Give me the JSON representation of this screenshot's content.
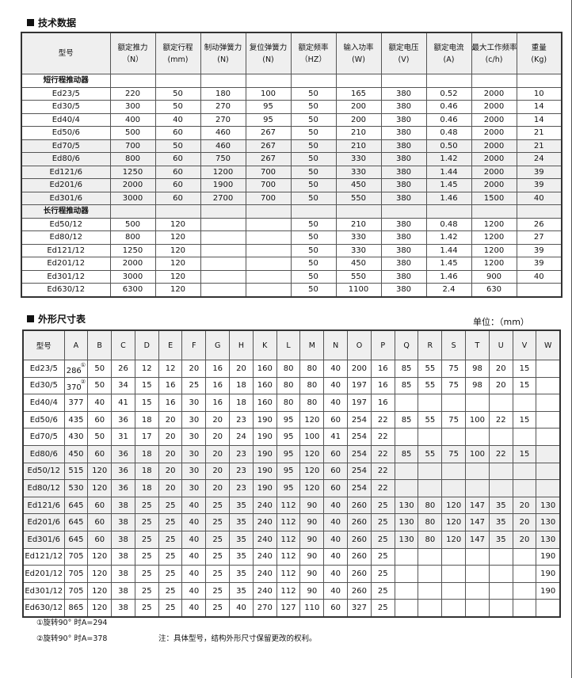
{
  "spec": {
    "title": "技术数据",
    "headers": [
      {
        "name": "型号",
        "unit": ""
      },
      {
        "name": "额定推力",
        "unit": "（N）"
      },
      {
        "name": "额定行程",
        "unit": "(mm)"
      },
      {
        "name": "制动弹簧力",
        "unit": "(N)"
      },
      {
        "name": "复位弹簧力",
        "unit": "(N)"
      },
      {
        "name": "额定频率",
        "unit": "（HZ）"
      },
      {
        "name": "输入功率",
        "unit": "(W)"
      },
      {
        "name": "额定电压",
        "unit": "(V)"
      },
      {
        "name": "额定电流",
        "unit": "(A)"
      },
      {
        "name": "最大工作频率",
        "unit": "(c/h)"
      },
      {
        "name": "重量",
        "unit": "(Kg)"
      }
    ],
    "groups": [
      {
        "label": "短行程推动器",
        "rows": [
          [
            "Ed23/5",
            "220",
            "50",
            "180",
            "100",
            "50",
            "165",
            "380",
            "0.52",
            "2000",
            "10"
          ],
          [
            "Ed30/5",
            "300",
            "50",
            "270",
            "95",
            "50",
            "200",
            "380",
            "0.46",
            "2000",
            "14"
          ],
          [
            "Ed40/4",
            "400",
            "40",
            "270",
            "95",
            "50",
            "200",
            "380",
            "0.46",
            "2000",
            "14"
          ],
          [
            "Ed50/6",
            "500",
            "60",
            "460",
            "267",
            "50",
            "210",
            "380",
            "0.48",
            "2000",
            "21"
          ],
          [
            "Ed70/5",
            "700",
            "50",
            "460",
            "267",
            "50",
            "210",
            "380",
            "0.50",
            "2000",
            "21"
          ],
          [
            "Ed80/6",
            "800",
            "60",
            "750",
            "267",
            "50",
            "330",
            "380",
            "1.42",
            "2000",
            "24"
          ],
          [
            "Ed121/6",
            "1250",
            "60",
            "1200",
            "700",
            "50",
            "330",
            "380",
            "1.44",
            "2000",
            "39"
          ],
          [
            "Ed201/6",
            "2000",
            "60",
            "1900",
            "700",
            "50",
            "450",
            "380",
            "1.45",
            "2000",
            "39"
          ],
          [
            "Ed301/6",
            "3000",
            "60",
            "2700",
            "700",
            "50",
            "550",
            "380",
            "1.46",
            "1500",
            "40"
          ]
        ]
      },
      {
        "label": "长行程推动器",
        "rows": [
          [
            "Ed50/12",
            "500",
            "120",
            "",
            "",
            "50",
            "210",
            "380",
            "0.48",
            "1200",
            "26"
          ],
          [
            "Ed80/12",
            "800",
            "120",
            "",
            "",
            "50",
            "330",
            "380",
            "1.42",
            "1200",
            "27"
          ],
          [
            "Ed121/12",
            "1250",
            "120",
            "",
            "",
            "50",
            "330",
            "380",
            "1.44",
            "1200",
            "39"
          ],
          [
            "Ed201/12",
            "2000",
            "120",
            "",
            "",
            "50",
            "450",
            "380",
            "1.45",
            "1200",
            "39"
          ],
          [
            "Ed301/12",
            "3000",
            "120",
            "",
            "",
            "50",
            "550",
            "380",
            "1.46",
            "900",
            "40"
          ],
          [
            "Ed630/12",
            "6300",
            "120",
            "",
            "",
            "50",
            "1100",
            "380",
            "2.4",
            "630",
            ""
          ]
        ]
      }
    ]
  },
  "dims": {
    "title": "外形尺寸表",
    "unit": "单位：（mm）",
    "headers": [
      "型号",
      "A",
      "B",
      "C",
      "D",
      "E",
      "F",
      "G",
      "H",
      "K",
      "L",
      "M",
      "N",
      "O",
      "P",
      "Q",
      "R",
      "S",
      "T",
      "U",
      "V",
      "W"
    ],
    "rows": [
      {
        "cells": [
          "Ed23/5",
          "286",
          "50",
          "26",
          "12",
          "12",
          "20",
          "16",
          "20",
          "160",
          "80",
          "80",
          "40",
          "200",
          "16",
          "85",
          "55",
          "75",
          "98",
          "20",
          "15",
          ""
        ],
        "mark": "①"
      },
      {
        "cells": [
          "Ed30/5",
          "370",
          "50",
          "34",
          "15",
          "16",
          "25",
          "16",
          "18",
          "160",
          "80",
          "80",
          "40",
          "197",
          "16",
          "85",
          "55",
          "75",
          "98",
          "20",
          "15",
          ""
        ],
        "mark": "②"
      },
      {
        "cells": [
          "Ed40/4",
          "377",
          "40",
          "41",
          "15",
          "16",
          "30",
          "16",
          "18",
          "160",
          "80",
          "80",
          "40",
          "197",
          "16",
          "",
          "",
          "",
          "",
          "",
          "",
          ""
        ]
      },
      {
        "cells": [
          "Ed50/6",
          "435",
          "60",
          "36",
          "18",
          "20",
          "30",
          "20",
          "23",
          "190",
          "95",
          "120",
          "60",
          "254",
          "22",
          "85",
          "55",
          "75",
          "100",
          "22",
          "15",
          ""
        ]
      },
      {
        "cells": [
          "Ed70/5",
          "430",
          "50",
          "31",
          "17",
          "20",
          "30",
          "20",
          "24",
          "190",
          "95",
          "100",
          "41",
          "254",
          "22",
          "",
          "",
          "",
          "",
          "",
          "",
          ""
        ]
      },
      {
        "cells": [
          "Ed80/6",
          "450",
          "60",
          "36",
          "18",
          "20",
          "30",
          "20",
          "23",
          "190",
          "95",
          "120",
          "60",
          "254",
          "22",
          "85",
          "55",
          "75",
          "100",
          "22",
          "15",
          ""
        ],
        "shaded": true
      },
      {
        "cells": [
          "Ed50/12",
          "515",
          "120",
          "36",
          "18",
          "20",
          "30",
          "20",
          "23",
          "190",
          "95",
          "120",
          "60",
          "254",
          "22",
          "",
          "",
          "",
          "",
          "",
          "",
          ""
        ],
        "shaded": true
      },
      {
        "cells": [
          "Ed80/12",
          "530",
          "120",
          "36",
          "18",
          "20",
          "30",
          "20",
          "23",
          "190",
          "95",
          "120",
          "60",
          "254",
          "22",
          "",
          "",
          "",
          "",
          "",
          "",
          ""
        ],
        "shaded": true
      },
      {
        "cells": [
          "Ed121/6",
          "645",
          "60",
          "38",
          "25",
          "25",
          "40",
          "25",
          "35",
          "240",
          "112",
          "90",
          "40",
          "260",
          "25",
          "130",
          "80",
          "120",
          "147",
          "35",
          "20",
          "130"
        ],
        "shaded": true
      },
      {
        "cells": [
          "Ed201/6",
          "645",
          "60",
          "38",
          "25",
          "25",
          "40",
          "25",
          "35",
          "240",
          "112",
          "90",
          "40",
          "260",
          "25",
          "130",
          "80",
          "120",
          "147",
          "35",
          "20",
          "130"
        ],
        "shaded": true
      },
      {
        "cells": [
          "Ed301/6",
          "645",
          "60",
          "38",
          "25",
          "25",
          "40",
          "25",
          "35",
          "240",
          "112",
          "90",
          "40",
          "260",
          "25",
          "130",
          "80",
          "120",
          "147",
          "35",
          "20",
          "130"
        ],
        "shaded": true
      },
      {
        "cells": [
          "Ed121/12",
          "705",
          "120",
          "38",
          "25",
          "25",
          "40",
          "25",
          "35",
          "240",
          "112",
          "90",
          "40",
          "260",
          "25",
          "",
          "",
          "",
          "",
          "",
          "",
          "190"
        ]
      },
      {
        "cells": [
          "Ed201/12",
          "705",
          "120",
          "38",
          "25",
          "25",
          "40",
          "25",
          "35",
          "240",
          "112",
          "90",
          "40",
          "260",
          "25",
          "",
          "",
          "",
          "",
          "",
          "",
          "190"
        ]
      },
      {
        "cells": [
          "Ed301/12",
          "705",
          "120",
          "38",
          "25",
          "25",
          "40",
          "25",
          "35",
          "240",
          "112",
          "90",
          "40",
          "260",
          "25",
          "",
          "",
          "",
          "",
          "",
          "",
          "190"
        ]
      },
      {
        "cells": [
          "Ed630/12",
          "865",
          "120",
          "38",
          "25",
          "25",
          "40",
          "25",
          "40",
          "270",
          "127",
          "110",
          "60",
          "327",
          "25",
          "",
          "",
          "",
          "",
          "",
          "",
          ""
        ]
      }
    ]
  },
  "notes": {
    "note1": "①旋转90° 时A=294",
    "note2": "②旋转90° 时A=378",
    "remark": "注：具体型号，结构外形尺寸保留更改的权利。"
  }
}
